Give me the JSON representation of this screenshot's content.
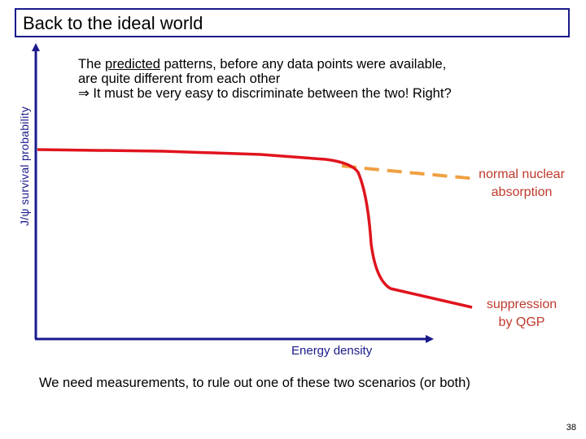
{
  "slide": {
    "title": "Back to the ideal world",
    "intro": {
      "line1_prefix": "The ",
      "line1_underlined": "predicted",
      "line1_suffix": " patterns, before any data points were available,",
      "line2": "are quite different from each other",
      "line3": "⇒ It must be very easy to discriminate between the two! Right?"
    },
    "ylabel": "J/ψ  survival  probability",
    "xlabel": "Energy density",
    "label_normal_1": "normal nuclear",
    "label_normal_2": "absorption",
    "label_qgp_1": "suppression",
    "label_qgp_2": "by QGP",
    "bottom_note": "We need measurements, to rule out one of these two scenarios (or both)",
    "page_number": "38"
  },
  "colors": {
    "axis": "#1a1a8c",
    "qgp_curve": "#e0141e",
    "normal_curve": "#f0a040",
    "annotation": "#c0392b"
  }
}
